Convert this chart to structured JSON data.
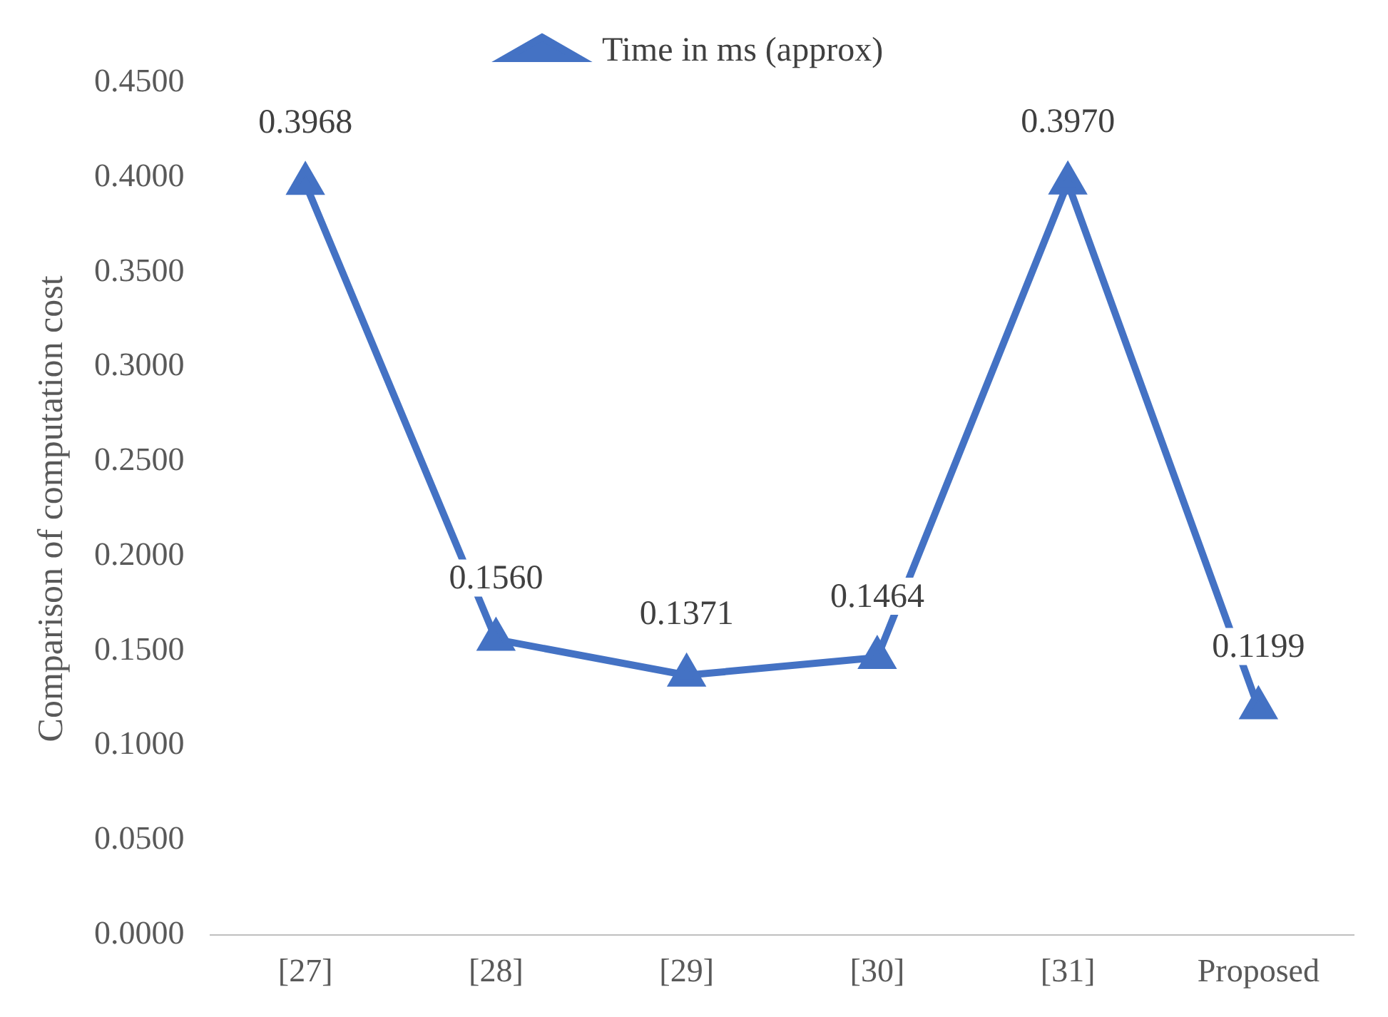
{
  "chart_data": {
    "type": "line",
    "ylabel": "Comparison of computation cost",
    "categories": [
      "[27]",
      "[28]",
      "[29]",
      "[30]",
      "[31]",
      "Proposed"
    ],
    "series": [
      {
        "name": "Time in ms (approx)",
        "color": "#4472c4",
        "values": [
          0.3968,
          0.156,
          0.1371,
          0.1464,
          0.397,
          0.1199
        ],
        "value_labels": [
          "0.3968",
          "0.1560",
          "0.1371",
          "0.1464",
          "0.3970",
          "0.1199"
        ]
      }
    ],
    "ylim": [
      0,
      0.45
    ],
    "yticks": [
      {
        "value": 0,
        "label": "0.0000"
      },
      {
        "value": 0.05,
        "label": "0.0500"
      },
      {
        "value": 0.1,
        "label": "0.1000"
      },
      {
        "value": 0.15,
        "label": "0.1500"
      },
      {
        "value": 0.2,
        "label": "0.2000"
      },
      {
        "value": 0.25,
        "label": "0.2500"
      },
      {
        "value": 0.3,
        "label": "0.3000"
      },
      {
        "value": 0.35,
        "label": "0.3500"
      },
      {
        "value": 0.4,
        "label": "0.4000"
      },
      {
        "value": 0.45,
        "label": "0.4500"
      }
    ],
    "grid": false,
    "legend": "top",
    "marker": "triangle",
    "line_style": "solid"
  }
}
